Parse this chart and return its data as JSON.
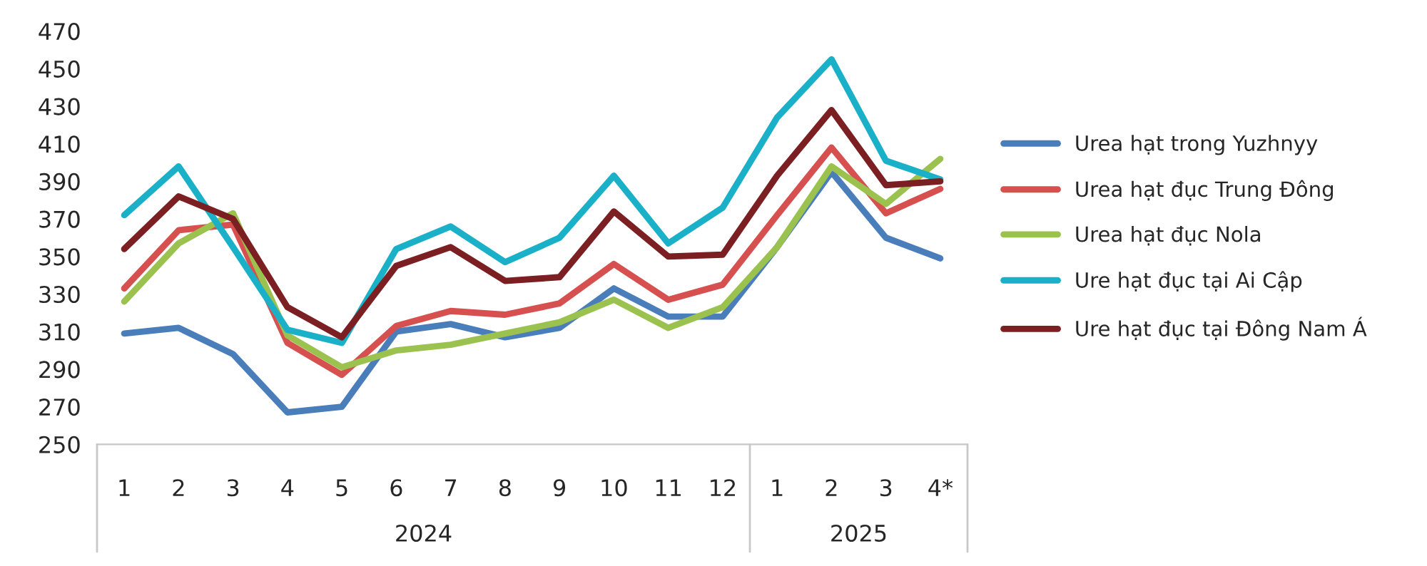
{
  "chart_data": {
    "type": "line",
    "categories": [
      "1",
      "2",
      "3",
      "4",
      "5",
      "6",
      "7",
      "8",
      "9",
      "10",
      "11",
      "12",
      "1",
      "2",
      "3",
      "4*"
    ],
    "series": [
      {
        "name": "Urea hạt trong Yuzhnyy",
        "color": "#4a7ebb",
        "values": [
          309,
          312,
          298,
          267,
          270,
          310,
          314,
          307,
          312,
          333,
          318,
          318,
          355,
          395,
          360,
          349
        ]
      },
      {
        "name": "Urea hạt đục Trung Đông",
        "color": "#d65050",
        "values": [
          333,
          364,
          367,
          304,
          287,
          313,
          321,
          319,
          325,
          346,
          327,
          335,
          372,
          408,
          373,
          386
        ]
      },
      {
        "name": "Urea hạt đục Nola",
        "color": "#9bc24f",
        "values": [
          326,
          357,
          373,
          308,
          291,
          300,
          303,
          309,
          315,
          327,
          312,
          323,
          355,
          398,
          378,
          402
        ]
      },
      {
        "name": "Ure hạt đục tại Ai Cập",
        "color": "#1ab0c8",
        "values": [
          372,
          398,
          355,
          311,
          304,
          354,
          366,
          347,
          360,
          393,
          357,
          376,
          424,
          455,
          401,
          391
        ]
      },
      {
        "name": "Ure hạt đục tại Đông Nam Á",
        "color": "#7b1f22",
        "values": [
          354,
          382,
          370,
          323,
          307,
          345,
          355,
          337,
          339,
          374,
          350,
          351,
          393,
          428,
          388,
          390
        ]
      }
    ],
    "ylim": [
      250,
      470
    ],
    "yticks": [
      250,
      270,
      290,
      310,
      330,
      350,
      370,
      390,
      410,
      430,
      450,
      470
    ],
    "annotations": [
      "2024",
      "2025"
    ],
    "legend": "right",
    "grid": false,
    "marker": "none",
    "line_style": "solid"
  }
}
